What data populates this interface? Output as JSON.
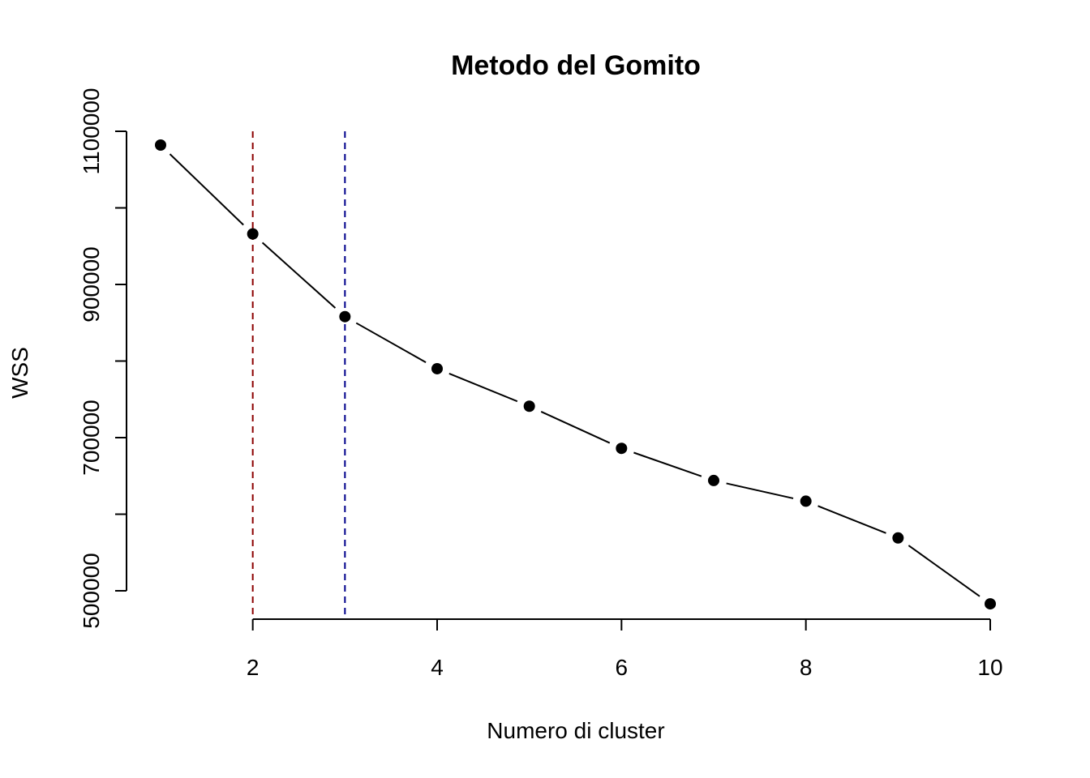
{
  "chart_data": {
    "type": "line",
    "title": "Metodo del Gomito",
    "xlabel": "Numero di cluster",
    "ylabel": "WSS",
    "x": [
      1,
      2,
      3,
      4,
      5,
      6,
      7,
      8,
      9,
      10
    ],
    "series": [
      {
        "values": [
          1082000,
          966000,
          858000,
          790000,
          741000,
          686000,
          644000,
          617000,
          569000,
          483000
        ]
      }
    ],
    "xlim": [
      1,
      10
    ],
    "ylim": [
      460000,
      1100000
    ],
    "x_ticks": [
      2,
      4,
      6,
      8,
      10
    ],
    "x_tick_labels": [
      "2",
      "4",
      "6",
      "8",
      "10"
    ],
    "y_ticks": [
      500000,
      600000,
      700000,
      800000,
      900000,
      1000000,
      1100000
    ],
    "y_tick_labels": [
      "500000",
      "",
      "700000",
      "",
      "900000",
      "",
      "1100000"
    ],
    "vlines": [
      {
        "x": 2,
        "color": "#8B0000",
        "style": "dashed"
      },
      {
        "x": 3,
        "color": "#00008B",
        "style": "dashed"
      }
    ],
    "grid": false,
    "colors": {
      "line": "#000000",
      "points": "#000000"
    }
  }
}
